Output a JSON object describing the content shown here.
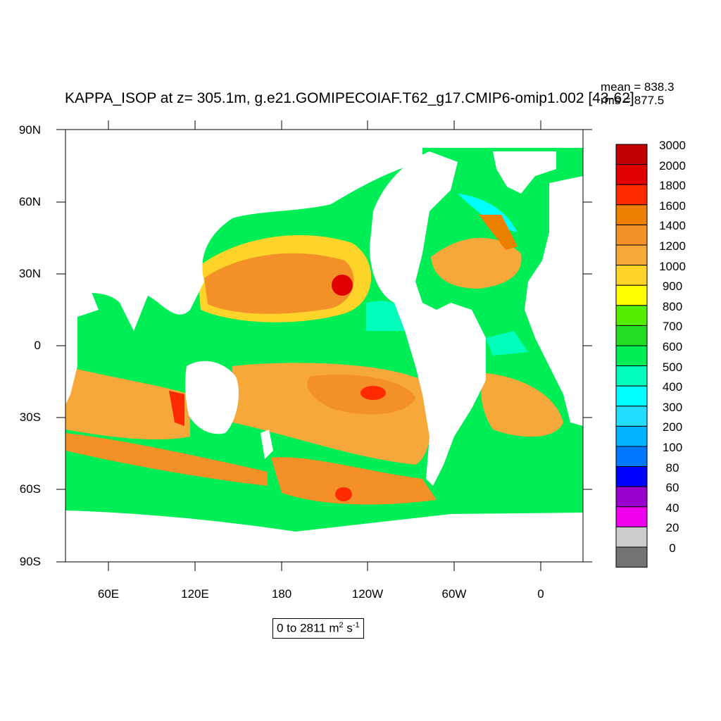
{
  "title": "KAPPA_ISOP at z= 305.1m, g.e21.GOMIPECOIAF.T62_g17.CMIP6-omip1.002 [43-62]",
  "stats": {
    "mean": "mean = 838.3",
    "rms": "rms = 877.5"
  },
  "lat_labels": [
    "90N",
    "60N",
    "30N",
    "0",
    "30S",
    "60S",
    "90S"
  ],
  "lon_labels": [
    "60E",
    "120E",
    "180",
    "120W",
    "60W",
    "0"
  ],
  "units": {
    "text": "0 to 2811 m",
    "sup1": "2",
    "mid": " s",
    "sup2": "-1"
  },
  "colorbar": {
    "labels": [
      "3000",
      "2000",
      "1800",
      "1600",
      "1400",
      "1200",
      "1000",
      "900",
      "800",
      "700",
      "600",
      "500",
      "400",
      "300",
      "200",
      "100",
      "80",
      "60",
      "40",
      "20",
      "0"
    ],
    "colors": [
      "#c00000",
      "#e00000",
      "#ff2a00",
      "#ee8000",
      "#f39028",
      "#f7a83a",
      "#ffd42a",
      "#ffff00",
      "#55ee00",
      "#22dd22",
      "#00ee55",
      "#00ffbb",
      "#00ffff",
      "#22ddff",
      "#00b2ff",
      "#0077ff",
      "#0000ff",
      "#9a00cc",
      "#ee00ee",
      "#cccccc",
      "#737373"
    ]
  },
  "colors": {
    "land": "#ffffff",
    "ocean_base": "#00ee55"
  }
}
